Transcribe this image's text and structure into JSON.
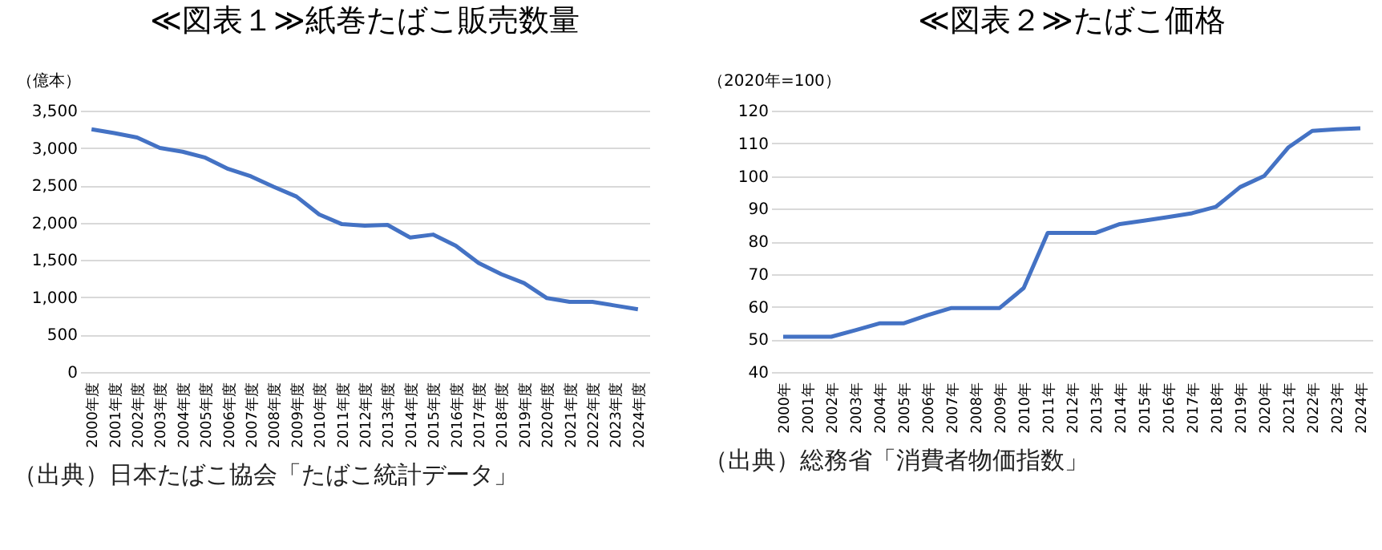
{
  "chart_data": [
    {
      "type": "line",
      "title": "≪図表１≫紙巻たばこ販売数量",
      "ylabel": "（億本）",
      "categories": [
        "2000年度",
        "2001年度",
        "2002年度",
        "2003年度",
        "2004年度",
        "2005年度",
        "2006年度",
        "2007年度",
        "2008年度",
        "2009年度",
        "2010年度",
        "2011年度",
        "2012年度",
        "2013年度",
        "2014年度",
        "2015年度",
        "2016年度",
        "2017年度",
        "2018年度",
        "2019年度",
        "2020年度",
        "2021年度",
        "2022年度",
        "2023年度",
        "2024年度"
      ],
      "series": [
        {
          "color": "#4472c4",
          "values": [
            3250,
            3200,
            3140,
            3000,
            2950,
            2870,
            2720,
            2620,
            2480,
            2350,
            2110,
            1980,
            1960,
            1970,
            1800,
            1840,
            1690,
            1460,
            1310,
            1190,
            990,
            940,
            940,
            890,
            840
          ]
        }
      ],
      "ylim": [
        0,
        3500
      ],
      "yticks": [
        0,
        500,
        {
          "value": 1000,
          "label": "1,000"
        },
        {
          "value": 1500,
          "label": "1,500"
        },
        {
          "value": 2000,
          "label": "2,000"
        },
        {
          "value": 2500,
          "label": "2,500"
        },
        {
          "value": 3000,
          "label": "3,000"
        },
        {
          "value": 3500,
          "label": "3,500"
        }
      ],
      "grid": "y",
      "annotations": [
        "（出典）日本たばこ協会「たばこ統計データ」"
      ]
    },
    {
      "type": "line",
      "title": "≪図表２≫たばこ価格",
      "ylabel": "（2020年=100）",
      "categories": [
        "2000年",
        "2001年",
        "2002年",
        "2003年",
        "2004年",
        "2005年",
        "2006年",
        "2007年",
        "2008年",
        "2009年",
        "2010年",
        "2011年",
        "2012年",
        "2013年",
        "2014年",
        "2015年",
        "2016年",
        "2017年",
        "2018年",
        "2019年",
        "2020年",
        "2021年",
        "2022年",
        "2023年",
        "2024年"
      ],
      "series": [
        {
          "color": "#4472c4",
          "values": [
            50.8,
            50.8,
            50.8,
            52.8,
            54.9,
            54.9,
            57.4,
            59.6,
            59.6,
            59.6,
            65.7,
            82.6,
            82.6,
            82.6,
            85.3,
            86.3,
            87.4,
            88.6,
            90.6,
            96.6,
            100,
            108.7,
            113.8,
            114.3,
            114.6
          ]
        }
      ],
      "ylim": [
        40,
        120
      ],
      "yticks": [
        40,
        50,
        60,
        70,
        80,
        90,
        100,
        110,
        120
      ],
      "grid": "y",
      "annotations": [
        "（出典）総務省「消費者物価指数」"
      ]
    }
  ]
}
